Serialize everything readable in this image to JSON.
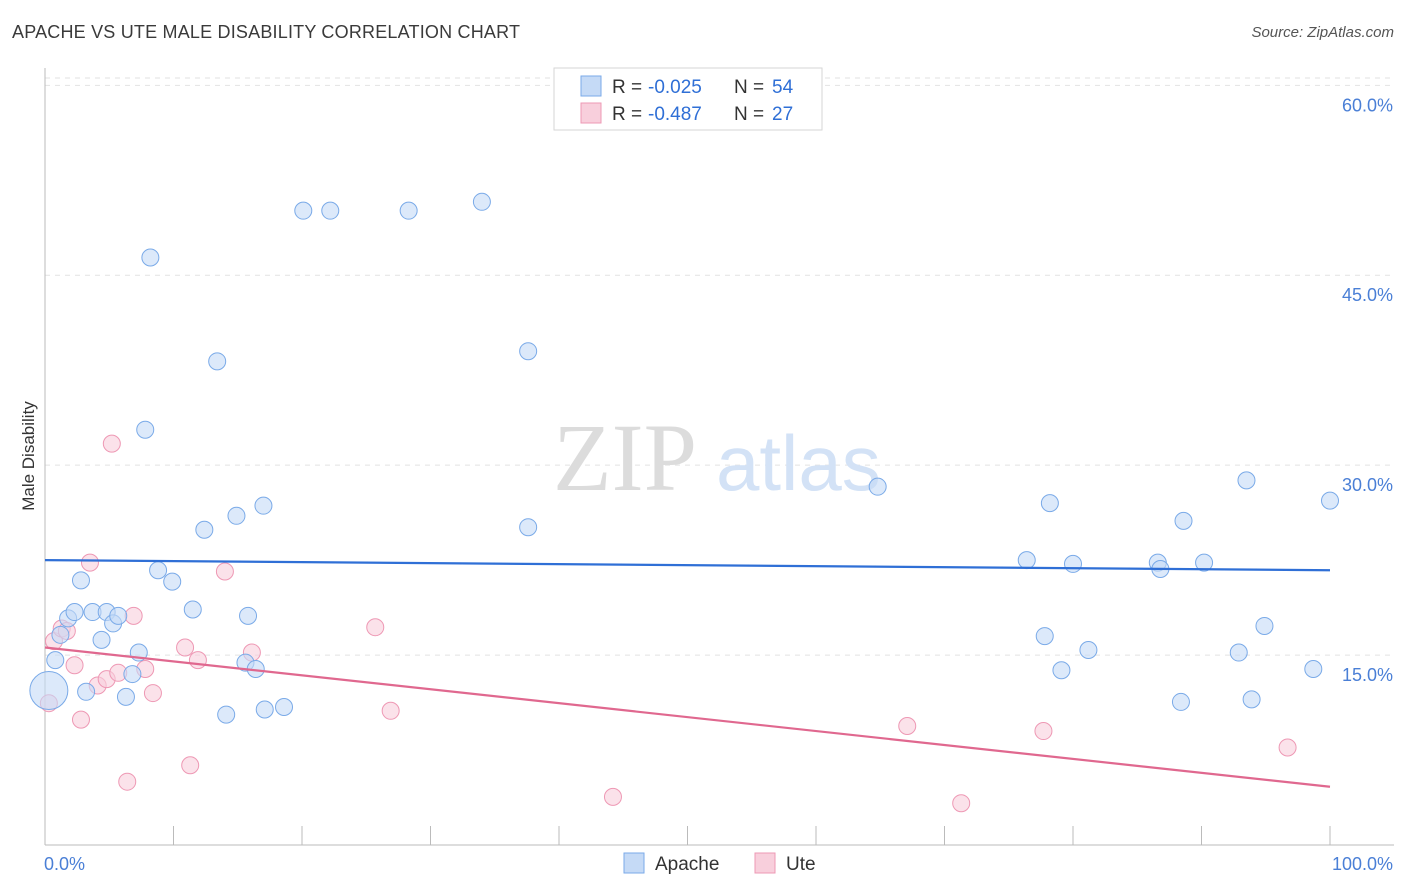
{
  "chart_data": {
    "type": "scatter",
    "title": "APACHE VS UTE MALE DISABILITY CORRELATION CHART",
    "source": "Source: ZipAtlas.com",
    "ylabel": "Male Disability",
    "xlabel": "",
    "xlim": [
      0,
      100
    ],
    "ylim": [
      0,
      62
    ],
    "y_ticks": [
      {
        "value": 15,
        "label": "15.0%"
      },
      {
        "value": 30,
        "label": "30.0%"
      },
      {
        "value": 45,
        "label": "45.0%"
      },
      {
        "value": 60,
        "label": "60.0%"
      }
    ],
    "x_tick_labels": {
      "min": "0.0%",
      "max": "100.0%"
    },
    "x_minor_ticks": [
      0,
      10,
      20,
      30,
      40,
      50,
      60,
      70,
      80,
      90,
      100
    ],
    "watermark": {
      "part1": "ZIP",
      "part2": "atlas"
    },
    "legend": [
      {
        "r_label": "R =",
        "r": "-0.025",
        "n_label": "N =",
        "n": "54"
      },
      {
        "r_label": "R =",
        "r": "-0.487",
        "n_label": "N =",
        "n": "27"
      }
    ],
    "series": [
      {
        "name": "Apache",
        "color": "#7aaae8",
        "fill": "#c5daf6",
        "trend_color": "#2f6fd6",
        "trend": {
          "x0": 0,
          "y0": 22.5,
          "x1": 100,
          "y1": 21.7
        },
        "points": [
          {
            "x": 0.3,
            "y": 12.2,
            "big": true
          },
          {
            "x": 0.8,
            "y": 14.6
          },
          {
            "x": 1.2,
            "y": 16.6
          },
          {
            "x": 1.8,
            "y": 17.9
          },
          {
            "x": 2.3,
            "y": 18.4
          },
          {
            "x": 2.8,
            "y": 20.9
          },
          {
            "x": 3.2,
            "y": 12.1
          },
          {
            "x": 3.7,
            "y": 18.4
          },
          {
            "x": 4.4,
            "y": 16.2
          },
          {
            "x": 4.8,
            "y": 18.4
          },
          {
            "x": 5.3,
            "y": 17.5
          },
          {
            "x": 5.7,
            "y": 18.1
          },
          {
            "x": 6.3,
            "y": 11.7
          },
          {
            "x": 6.8,
            "y": 13.5
          },
          {
            "x": 7.3,
            "y": 15.2
          },
          {
            "x": 7.8,
            "y": 32.8
          },
          {
            "x": 8.2,
            "y": 46.4
          },
          {
            "x": 8.8,
            "y": 21.7
          },
          {
            "x": 9.9,
            "y": 20.8
          },
          {
            "x": 11.5,
            "y": 18.6
          },
          {
            "x": 12.4,
            "y": 24.9
          },
          {
            "x": 13.4,
            "y": 38.2
          },
          {
            "x": 14.1,
            "y": 10.3
          },
          {
            "x": 14.9,
            "y": 26.0
          },
          {
            "x": 15.6,
            "y": 14.4
          },
          {
            "x": 15.8,
            "y": 18.1
          },
          {
            "x": 16.4,
            "y": 13.9
          },
          {
            "x": 17.0,
            "y": 26.8
          },
          {
            "x": 17.1,
            "y": 10.7
          },
          {
            "x": 18.6,
            "y": 10.9
          },
          {
            "x": 20.1,
            "y": 50.1
          },
          {
            "x": 22.2,
            "y": 50.1
          },
          {
            "x": 28.3,
            "y": 50.1
          },
          {
            "x": 34.0,
            "y": 50.8
          },
          {
            "x": 37.6,
            "y": 25.1
          },
          {
            "x": 37.6,
            "y": 39.0
          },
          {
            "x": 64.8,
            "y": 28.3
          },
          {
            "x": 76.4,
            "y": 22.5
          },
          {
            "x": 77.8,
            "y": 16.5
          },
          {
            "x": 78.2,
            "y": 27.0
          },
          {
            "x": 79.1,
            "y": 13.8
          },
          {
            "x": 80.0,
            "y": 22.2
          },
          {
            "x": 81.2,
            "y": 15.4
          },
          {
            "x": 86.6,
            "y": 22.3
          },
          {
            "x": 86.8,
            "y": 21.8
          },
          {
            "x": 88.4,
            "y": 11.3
          },
          {
            "x": 88.6,
            "y": 25.6
          },
          {
            "x": 90.2,
            "y": 22.3
          },
          {
            "x": 92.9,
            "y": 15.2
          },
          {
            "x": 93.5,
            "y": 28.8
          },
          {
            "x": 93.9,
            "y": 11.5
          },
          {
            "x": 94.9,
            "y": 17.3
          },
          {
            "x": 98.7,
            "y": 13.9
          },
          {
            "x": 100.0,
            "y": 27.2
          }
        ]
      },
      {
        "name": "Ute",
        "color": "#ee98b4",
        "fill": "#f8cfdc",
        "trend_color": "#e0688f",
        "trend": {
          "x0": 0,
          "y0": 15.6,
          "x1": 100,
          "y1": 4.6
        },
        "points": [
          {
            "x": 0.3,
            "y": 11.2
          },
          {
            "x": 0.7,
            "y": 16.1
          },
          {
            "x": 1.3,
            "y": 17.1
          },
          {
            "x": 1.7,
            "y": 16.9
          },
          {
            "x": 2.3,
            "y": 14.2
          },
          {
            "x": 2.8,
            "y": 9.9
          },
          {
            "x": 3.5,
            "y": 22.3
          },
          {
            "x": 4.1,
            "y": 12.6
          },
          {
            "x": 4.8,
            "y": 13.1
          },
          {
            "x": 5.2,
            "y": 31.7
          },
          {
            "x": 5.7,
            "y": 13.6
          },
          {
            "x": 6.4,
            "y": 5.0
          },
          {
            "x": 6.9,
            "y": 18.1
          },
          {
            "x": 7.8,
            "y": 13.9
          },
          {
            "x": 8.4,
            "y": 12.0
          },
          {
            "x": 10.9,
            "y": 15.6
          },
          {
            "x": 11.3,
            "y": 6.3
          },
          {
            "x": 11.9,
            "y": 14.6
          },
          {
            "x": 14.0,
            "y": 21.6
          },
          {
            "x": 16.1,
            "y": 15.2
          },
          {
            "x": 25.7,
            "y": 17.2
          },
          {
            "x": 26.9,
            "y": 10.6
          },
          {
            "x": 44.2,
            "y": 3.8
          },
          {
            "x": 67.1,
            "y": 9.4
          },
          {
            "x": 71.3,
            "y": 3.3
          },
          {
            "x": 77.7,
            "y": 9.0
          },
          {
            "x": 96.7,
            "y": 7.7
          }
        ]
      }
    ]
  }
}
